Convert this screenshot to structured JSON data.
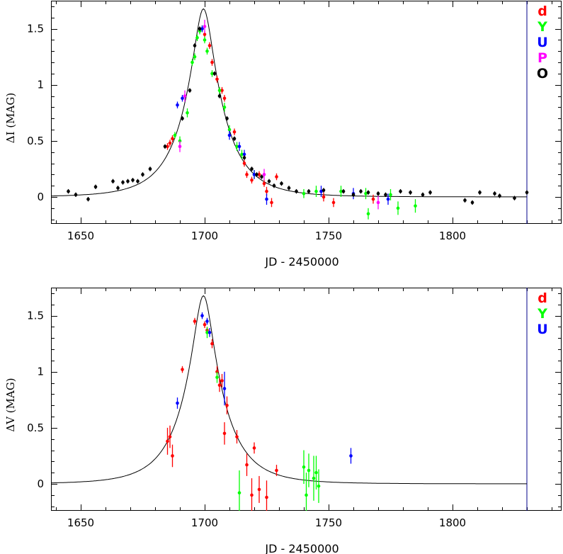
{
  "chart_data": [
    {
      "type": "scatter",
      "xlabel": "JD - 2450000",
      "ylabel": "ΔI (MAG)",
      "xlim": [
        1638,
        1844
      ],
      "ylim": [
        -0.24,
        1.75
      ],
      "xticks": [
        1650,
        1700,
        1750,
        1800
      ],
      "yticks": [
        0,
        0.5,
        1,
        1.5
      ],
      "xtick_labels": [
        "1650",
        "1700",
        "1750",
        "1800"
      ],
      "ytick_labels": [
        "0",
        "0.5",
        "1",
        "1.5"
      ],
      "grid": false,
      "legend_position": "top-right",
      "vline_x": 1830,
      "model_curve": {
        "t0": 1699.5,
        "u0": 0.217,
        "tE": 16.5,
        "baseline": 0
      },
      "series": [
        {
          "name": "d",
          "color": "#ff0000",
          "points": [
            [
              1685,
              0.45,
              0.03
            ],
            [
              1686,
              0.48,
              0.03
            ],
            [
              1687,
              0.52,
              0.03
            ],
            [
              1700,
              1.45,
              0.03
            ],
            [
              1702,
              1.35,
              0.03
            ],
            [
              1703,
              1.2,
              0.03
            ],
            [
              1705,
              1.05,
              0.03
            ],
            [
              1707,
              0.95,
              0.03
            ],
            [
              1708,
              0.88,
              0.03
            ],
            [
              1712,
              0.58,
              0.03
            ],
            [
              1716,
              0.3,
              0.03
            ],
            [
              1717,
              0.2,
              0.03
            ],
            [
              1719,
              0.15,
              0.03
            ],
            [
              1722,
              0.2,
              0.03
            ],
            [
              1724,
              0.12,
              0.03
            ],
            [
              1725,
              0.05,
              0.04
            ],
            [
              1727,
              -0.05,
              0.04
            ],
            [
              1729,
              0.18,
              0.03
            ],
            [
              1748,
              0.0,
              0.04
            ],
            [
              1752,
              -0.05,
              0.04
            ],
            [
              1768,
              -0.02,
              0.04
            ]
          ]
        },
        {
          "name": "Y",
          "color": "#00ff00",
          "points": [
            [
              1688,
              0.55,
              0.03
            ],
            [
              1690,
              0.5,
              0.04
            ],
            [
              1693,
              0.75,
              0.04
            ],
            [
              1695,
              1.2,
              0.03
            ],
            [
              1696,
              1.25,
              0.03
            ],
            [
              1697,
              1.42,
              0.03
            ],
            [
              1698,
              1.48,
              0.03
            ],
            [
              1699,
              1.5,
              0.03
            ],
            [
              1700,
              1.4,
              0.03
            ],
            [
              1701,
              1.3,
              0.03
            ],
            [
              1703,
              1.1,
              0.03
            ],
            [
              1706,
              0.95,
              0.03
            ],
            [
              1708,
              0.8,
              0.04
            ],
            [
              1710,
              0.6,
              0.04
            ],
            [
              1713,
              0.45,
              0.04
            ],
            [
              1715,
              0.38,
              0.04
            ],
            [
              1720,
              0.2,
              0.04
            ],
            [
              1740,
              0.03,
              0.04
            ],
            [
              1745,
              0.05,
              0.05
            ],
            [
              1755,
              0.05,
              0.05
            ],
            [
              1765,
              0.03,
              0.05
            ],
            [
              1766,
              -0.15,
              0.05
            ],
            [
              1775,
              0.02,
              0.05
            ],
            [
              1778,
              -0.1,
              0.06
            ],
            [
              1785,
              -0.08,
              0.06
            ]
          ]
        },
        {
          "name": "U",
          "color": "#0000ff",
          "points": [
            [
              1689,
              0.82,
              0.03
            ],
            [
              1691,
              0.88,
              0.03
            ],
            [
              1699,
              1.5,
              0.03
            ],
            [
              1710,
              0.55,
              0.04
            ],
            [
              1714,
              0.45,
              0.04
            ],
            [
              1716,
              0.38,
              0.04
            ],
            [
              1720,
              0.2,
              0.04
            ],
            [
              1725,
              -0.02,
              0.05
            ],
            [
              1747,
              0.05,
              0.05
            ],
            [
              1760,
              0.03,
              0.05
            ],
            [
              1774,
              -0.02,
              0.05
            ]
          ]
        },
        {
          "name": "P",
          "color": "#ff00ff",
          "points": [
            [
              1690,
              0.45,
              0.05
            ],
            [
              1692,
              0.9,
              0.05
            ],
            [
              1700,
              1.52,
              0.06
            ],
            [
              1724,
              0.2,
              0.05
            ],
            [
              1770,
              -0.05,
              0.06
            ]
          ]
        },
        {
          "name": "O",
          "color": "#000000",
          "points": [
            [
              1645,
              0.05,
              0.02
            ],
            [
              1648,
              0.02,
              0.02
            ],
            [
              1653,
              -0.02,
              0.02
            ],
            [
              1656,
              0.09,
              0.02
            ],
            [
              1663,
              0.14,
              0.02
            ],
            [
              1665,
              0.08,
              0.02
            ],
            [
              1667,
              0.13,
              0.02
            ],
            [
              1669,
              0.14,
              0.02
            ],
            [
              1671,
              0.15,
              0.02
            ],
            [
              1673,
              0.14,
              0.02
            ],
            [
              1675,
              0.2,
              0.02
            ],
            [
              1678,
              0.25,
              0.02
            ],
            [
              1684,
              0.45,
              0.02
            ],
            [
              1691,
              0.7,
              0.02
            ],
            [
              1694,
              0.95,
              0.02
            ],
            [
              1696,
              1.35,
              0.02
            ],
            [
              1698,
              1.5,
              0.02
            ],
            [
              1704,
              1.1,
              0.02
            ],
            [
              1706,
              0.9,
              0.02
            ],
            [
              1709,
              0.7,
              0.02
            ],
            [
              1712,
              0.52,
              0.02
            ],
            [
              1716,
              0.35,
              0.02
            ],
            [
              1719,
              0.25,
              0.02
            ],
            [
              1721,
              0.2,
              0.02
            ],
            [
              1723,
              0.18,
              0.02
            ],
            [
              1726,
              0.14,
              0.02
            ],
            [
              1728,
              0.1,
              0.02
            ],
            [
              1731,
              0.12,
              0.02
            ],
            [
              1734,
              0.08,
              0.02
            ],
            [
              1737,
              0.05,
              0.02
            ],
            [
              1742,
              0.05,
              0.02
            ],
            [
              1748,
              0.06,
              0.02
            ],
            [
              1756,
              0.05,
              0.02
            ],
            [
              1760,
              0.02,
              0.02
            ],
            [
              1763,
              0.05,
              0.02
            ],
            [
              1766,
              0.04,
              0.02
            ],
            [
              1770,
              0.03,
              0.02
            ],
            [
              1773,
              0.02,
              0.02
            ],
            [
              1779,
              0.05,
              0.02
            ],
            [
              1783,
              0.04,
              0.02
            ],
            [
              1788,
              0.02,
              0.02
            ],
            [
              1791,
              0.04,
              0.02
            ],
            [
              1805,
              -0.03,
              0.02
            ],
            [
              1808,
              -0.05,
              0.02
            ],
            [
              1811,
              0.04,
              0.02
            ],
            [
              1817,
              0.03,
              0.02
            ],
            [
              1819,
              0.01,
              0.02
            ],
            [
              1825,
              -0.01,
              0.02
            ],
            [
              1830,
              0.04,
              0.02
            ]
          ]
        }
      ]
    },
    {
      "type": "scatter",
      "xlabel": "JD - 2450000",
      "ylabel": "ΔV (MAG)",
      "xlim": [
        1638,
        1844
      ],
      "ylim": [
        -0.24,
        1.75
      ],
      "xticks": [
        1650,
        1700,
        1750,
        1800
      ],
      "yticks": [
        0,
        0.5,
        1,
        1.5
      ],
      "xtick_labels": [
        "1650",
        "1700",
        "1750",
        "1800"
      ],
      "ytick_labels": [
        "0",
        "0.5",
        "1",
        "1.5"
      ],
      "grid": false,
      "legend_position": "top-right",
      "vline_x": 1830,
      "model_curve": {
        "t0": 1699.5,
        "u0": 0.217,
        "tE": 16.5,
        "baseline": 0
      },
      "series": [
        {
          "name": "d",
          "color": "#ff0000",
          "points": [
            [
              1685,
              0.38,
              0.12
            ],
            [
              1686,
              0.42,
              0.1
            ],
            [
              1687,
              0.25,
              0.1
            ],
            [
              1691,
              1.02,
              0.03
            ],
            [
              1696,
              1.45,
              0.03
            ],
            [
              1700,
              1.42,
              0.03
            ],
            [
              1701,
              1.37,
              0.03
            ],
            [
              1703,
              1.25,
              0.04
            ],
            [
              1705,
              1.0,
              0.05
            ],
            [
              1706,
              0.88,
              0.06
            ],
            [
              1707,
              0.92,
              0.06
            ],
            [
              1708,
              0.45,
              0.1
            ],
            [
              1709,
              0.7,
              0.08
            ],
            [
              1713,
              0.42,
              0.06
            ],
            [
              1717,
              0.17,
              0.1
            ],
            [
              1719,
              -0.1,
              0.15
            ],
            [
              1720,
              0.32,
              0.05
            ],
            [
              1722,
              -0.05,
              0.12
            ],
            [
              1725,
              -0.12,
              0.15
            ],
            [
              1729,
              0.12,
              0.05
            ]
          ]
        },
        {
          "name": "Y",
          "color": "#00ff00",
          "points": [
            [
              1701,
              1.35,
              0.05
            ],
            [
              1705,
              0.95,
              0.05
            ],
            [
              1714,
              -0.08,
              0.2
            ],
            [
              1740,
              0.15,
              0.15
            ],
            [
              1742,
              0.12,
              0.15
            ],
            [
              1744,
              0.05,
              0.2
            ],
            [
              1745,
              0.1,
              0.15
            ],
            [
              1746,
              -0.02,
              0.15
            ],
            [
              1741,
              -0.1,
              0.2
            ]
          ]
        },
        {
          "name": "U",
          "color": "#0000ff",
          "points": [
            [
              1689,
              0.72,
              0.05
            ],
            [
              1699,
              1.5,
              0.03
            ],
            [
              1701,
              1.45,
              0.03
            ],
            [
              1702,
              1.35,
              0.04
            ],
            [
              1708,
              0.85,
              0.15
            ],
            [
              1759,
              0.25,
              0.07
            ]
          ]
        }
      ]
    }
  ]
}
